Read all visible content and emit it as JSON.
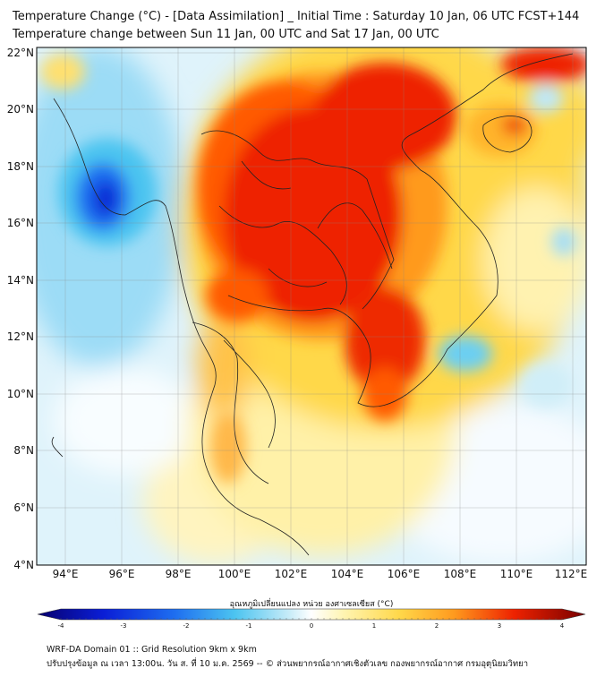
{
  "header": {
    "title_line1": "Temperature Change (°C) - [Data Assimilation] _ Initial Time : Saturday 10 Jan, 06 UTC FCST+144",
    "title_line2": "Temperature change between Sun 11 Jan, 00 UTC and Sat 17 Jan, 00 UTC"
  },
  "map": {
    "lon_labels": [
      "94°E",
      "96°E",
      "98°E",
      "100°E",
      "102°E",
      "104°E",
      "106°E",
      "108°E",
      "110°E",
      "112°E"
    ],
    "lat_labels": [
      "22°N",
      "20°N",
      "18°N",
      "16°N",
      "14°N",
      "12°N",
      "10°N",
      "8°N",
      "6°N",
      "4°N"
    ],
    "colors": {
      "strong_warm": "#ee2200",
      "warm": "#ff7700",
      "mild_warm": "#ffd84a",
      "neutral": "#ffffff",
      "mild_cool": "#bfe8f8",
      "cool": "#4cc4f0",
      "strong_cool": "#0a2ad6"
    }
  },
  "colorbar": {
    "label": "อุณหภูมิเปลี่ยนแปลง หน่วย องศาเซลเซียส (°C)",
    "ticks": [
      "-4",
      "-3",
      "-2",
      "-1",
      "0",
      "1",
      "2",
      "3",
      "4"
    ],
    "min": -4,
    "max": 4
  },
  "footer": {
    "line1": "WRF-DA Domain 01 :: Grid Resolution 9km x 9km",
    "line2": "ปรับปรุงข้อมูล ณ เวลา 13:00น. วัน ส. ที่ 10 ม.ค. 2569 -- © ส่วนพยากรณ์อากาศเชิงตัวเลข กองพยากรณ์อากาศ กรมอุตุนิยมวิทยา"
  }
}
